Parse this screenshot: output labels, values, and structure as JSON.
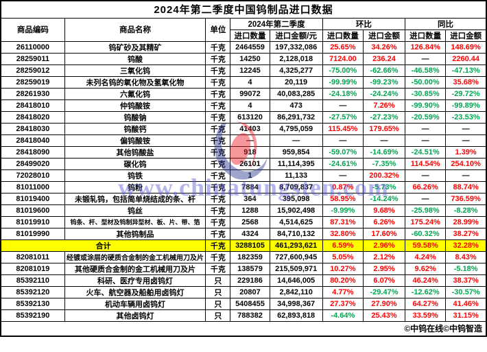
{
  "title": "2024年第二季度中国钨制品进口数据",
  "columns": {
    "code": "商品编码",
    "name": "商品名称",
    "unit": "单位",
    "q2_group": "2024年第二季度",
    "qoq_group": "环比",
    "yoy_group": "同比",
    "qty": "进口数量",
    "amount_yuan": "进口金额/元",
    "amount": "进口金额"
  },
  "colors": {
    "increase": "#FF0000",
    "decrease": "#00A650",
    "total_row_bg": "#FFFF00"
  },
  "rows": [
    {
      "code": "26110000",
      "name": "钨矿砂及其精矿",
      "unit": "千克",
      "qty": "2464559",
      "amount": "197,332,086",
      "qoq_qty": {
        "v": "25.65%",
        "c": "up"
      },
      "qoq_amt": {
        "v": "34.26%",
        "c": "up"
      },
      "yoy_qty": {
        "v": "126.84%",
        "c": "up"
      },
      "yoy_amt": {
        "v": "148.69%",
        "c": "up"
      }
    },
    {
      "code": "28259011",
      "name": "钨酸",
      "unit": "千克",
      "qty": "14250",
      "amount": "2,128,018",
      "qoq_qty": {
        "v": "7124.00",
        "c": "up"
      },
      "qoq_amt": {
        "v": "236.24",
        "c": "up"
      },
      "yoy_qty": {
        "v": "—",
        "c": "dash"
      },
      "yoy_amt": {
        "v": "2260.44",
        "c": "up"
      }
    },
    {
      "code": "28259012",
      "name": "三氧化钨",
      "unit": "千克",
      "qty": "12245",
      "amount": "4,325,277",
      "qoq_qty": {
        "v": "-75.00%",
        "c": "down"
      },
      "qoq_amt": {
        "v": "-62.66%",
        "c": "down"
      },
      "yoy_qty": {
        "v": "-46.58%",
        "c": "down"
      },
      "yoy_amt": {
        "v": "-47.13%",
        "c": "down"
      }
    },
    {
      "code": "28259019",
      "name": "未列名钨的氧化物及氢氧化物",
      "unit": "千克",
      "qty": "4",
      "amount": "20,119",
      "qoq_qty": {
        "v": "-99.99%",
        "c": "down"
      },
      "qoq_amt": {
        "v": "-99.23%",
        "c": "down"
      },
      "yoy_qty": {
        "v": "-50.00%",
        "c": "down"
      },
      "yoy_amt": {
        "v": "35.68%",
        "c": "up"
      }
    },
    {
      "code": "28261930",
      "name": "六氟化钨",
      "unit": "千克",
      "qty": "99072",
      "amount": "40,083,285",
      "qoq_qty": {
        "v": "-24.18%",
        "c": "down"
      },
      "qoq_amt": {
        "v": "-24.24%",
        "c": "down"
      },
      "yoy_qty": {
        "v": "-30.85%",
        "c": "down"
      },
      "yoy_amt": {
        "v": "-29.72%",
        "c": "down"
      }
    },
    {
      "code": "28418010",
      "name": "仲钨酸铵",
      "unit": "千克",
      "qty": "4",
      "amount": "473",
      "qoq_qty": {
        "v": "—",
        "c": "dash"
      },
      "qoq_amt": {
        "v": "7.26%",
        "c": "up"
      },
      "yoy_qty": {
        "v": "-99.90%",
        "c": "down"
      },
      "yoy_amt": {
        "v": "-99.89%",
        "c": "down"
      }
    },
    {
      "code": "28418020",
      "name": "钨酸钠",
      "unit": "千克",
      "qty": "613120",
      "amount": "86,291,732",
      "qoq_qty": {
        "v": "-27.57%",
        "c": "down"
      },
      "qoq_amt": {
        "v": "-27.23%",
        "c": "down"
      },
      "yoy_qty": {
        "v": "-20.59%",
        "c": "down"
      },
      "yoy_amt": {
        "v": "-23.53%",
        "c": "down"
      }
    },
    {
      "code": "28418030",
      "name": "钨酸钙",
      "unit": "千克",
      "qty": "41403",
      "amount": "4,795,059",
      "qoq_qty": {
        "v": "115.45%",
        "c": "up"
      },
      "qoq_amt": {
        "v": "179.65%",
        "c": "up"
      },
      "yoy_qty": {
        "v": "—",
        "c": "dash"
      },
      "yoy_amt": {
        "v": "—",
        "c": "dash"
      }
    },
    {
      "code": "28418040",
      "name": "偏钨酸铵",
      "unit": "千克",
      "qty": "—",
      "amount": "—",
      "qoq_qty": {
        "v": "—",
        "c": "dash"
      },
      "qoq_amt": {
        "v": "—",
        "c": "dash"
      },
      "yoy_qty": {
        "v": "—",
        "c": "dash"
      },
      "yoy_amt": {
        "v": "—",
        "c": "dash"
      }
    },
    {
      "code": "28418090",
      "name": "其他钨酸盐",
      "unit": "千克",
      "qty": "918",
      "amount": "959,854",
      "qoq_qty": {
        "v": "-59.07%",
        "c": "down"
      },
      "qoq_amt": {
        "v": "-14.69%",
        "c": "down"
      },
      "yoy_qty": {
        "v": "-24.51%",
        "c": "down"
      },
      "yoy_amt": {
        "v": "1.39%",
        "c": "up"
      }
    },
    {
      "code": "28499020",
      "name": "碳化钨",
      "unit": "千克",
      "qty": "26101",
      "amount": "11,114,395",
      "qoq_qty": {
        "v": "-24.61%",
        "c": "down"
      },
      "qoq_amt": {
        "v": "-7.35%",
        "c": "down"
      },
      "yoy_qty": {
        "v": "114.54%",
        "c": "up"
      },
      "yoy_amt": {
        "v": "254.10%",
        "c": "up"
      }
    },
    {
      "code": "72028010",
      "name": "钨铁",
      "unit": "千克",
      "qty": "1",
      "amount": "11,133",
      "qoq_qty": {
        "v": "—",
        "c": "dash"
      },
      "qoq_amt": {
        "v": "200.32%",
        "c": "up"
      },
      "yoy_qty": {
        "v": "—",
        "c": "dash"
      },
      "yoy_amt": {
        "v": "—",
        "c": "dash"
      }
    },
    {
      "code": "81011000",
      "name": "钨粉",
      "unit": "千克",
      "qty": "7884",
      "amount": "8,709,837",
      "qoq_qty": {
        "v": "0.87%",
        "c": "up"
      },
      "qoq_amt": {
        "v": "-5.73%",
        "c": "down"
      },
      "yoy_qty": {
        "v": "66.26%",
        "c": "up"
      },
      "yoy_amt": {
        "v": "88.74%",
        "c": "up"
      }
    },
    {
      "code": "81019400",
      "name": "未锻轧钨，包括简单烧结成的条、杆",
      "unit": "千克",
      "qty": "364",
      "amount": "395,098",
      "qoq_qty": {
        "v": "58.95%",
        "c": "up"
      },
      "qoq_amt": {
        "v": "-14.24%",
        "c": "down"
      },
      "yoy_qty": {
        "v": "—",
        "c": "dash"
      },
      "yoy_amt": {
        "v": "736.59%",
        "c": "up"
      }
    },
    {
      "code": "81019600",
      "name": "钨丝",
      "unit": "千克",
      "qty": "1288",
      "amount": "15,902,498",
      "qoq_qty": {
        "v": "-9.99%",
        "c": "down"
      },
      "qoq_amt": {
        "v": "9.68%",
        "c": "up"
      },
      "yoy_qty": {
        "v": "-25.98%",
        "c": "down"
      },
      "yoy_amt": {
        "v": "-8.28%",
        "c": "down"
      }
    },
    {
      "code": "81019910",
      "name": "钨条、杆、型材及钨制异型材、板、片、带、箔",
      "unit": "千克",
      "qty": "2568",
      "amount": "4,514,625",
      "qoq_qty": {
        "v": "87.31%",
        "c": "up"
      },
      "qoq_amt": {
        "v": "6.26%",
        "c": "up"
      },
      "yoy_qty": {
        "v": "175.24%",
        "c": "up"
      },
      "yoy_amt": {
        "v": "28.99%",
        "c": "up"
      }
    },
    {
      "code": "81019990",
      "name": "其他钨制品",
      "unit": "千克",
      "qty": "4324",
      "amount": "84,710,132",
      "qoq_qty": {
        "v": "32.80%",
        "c": "up"
      },
      "qoq_amt": {
        "v": "17.60%",
        "c": "up"
      },
      "yoy_qty": {
        "v": "-60.32%",
        "c": "down"
      },
      "yoy_amt": {
        "v": "38.27%",
        "c": "up"
      }
    },
    {
      "total": true,
      "name": "合计",
      "unit": "千克",
      "qty": "3288105",
      "amount": "461,293,621",
      "qoq_qty": {
        "v": "6.59%",
        "c": "up"
      },
      "qoq_amt": {
        "v": "2.96%",
        "c": "up"
      },
      "yoy_qty": {
        "v": "59.58%",
        "c": "up"
      },
      "yoy_amt": {
        "v": "32.28%",
        "c": "up"
      }
    },
    {
      "code": "82081011",
      "name": "经镀或涂层的硬质合金制的金工机械用刀及片",
      "unit": "千克",
      "qty": "182359",
      "amount": "727,600,945",
      "qoq_qty": {
        "v": "5.05%",
        "c": "up"
      },
      "qoq_amt": {
        "v": "2.12%",
        "c": "up"
      },
      "yoy_qty": {
        "v": "4.24%",
        "c": "up"
      },
      "yoy_amt": {
        "v": "8.43%",
        "c": "up"
      }
    },
    {
      "code": "82081019",
      "name": "其他硬质合金制的金工机械用刀及片",
      "unit": "千克",
      "qty": "138579",
      "amount": "215,509,971",
      "qoq_qty": {
        "v": "10.27%",
        "c": "up"
      },
      "qoq_amt": {
        "v": "2.95%",
        "c": "up"
      },
      "yoy_qty": {
        "v": "9.62%",
        "c": "up"
      },
      "yoy_amt": {
        "v": "-5.18%",
        "c": "down"
      }
    },
    {
      "code": "85392110",
      "name": "科研、医疗专用卤钨灯",
      "unit": "只",
      "qty": "229186",
      "amount": "14,646,005",
      "qoq_qty": {
        "v": "80.20%",
        "c": "up"
      },
      "qoq_amt": {
        "v": "6.07%",
        "c": "up"
      },
      "yoy_qty": {
        "v": "46.24%",
        "c": "up"
      },
      "yoy_amt": {
        "v": "38.37%",
        "c": "up"
      }
    },
    {
      "code": "85392120",
      "name": "火车、航空器及船舶用卤钨灯",
      "unit": "只",
      "qty": "20807",
      "amount": "2,842,110",
      "qoq_qty": {
        "v": "4.77%",
        "c": "up"
      },
      "qoq_amt": {
        "v": "-29.47%",
        "c": "down"
      },
      "yoy_qty": {
        "v": "-12.62%",
        "c": "down"
      },
      "yoy_amt": {
        "v": "-30.57%",
        "c": "down"
      }
    },
    {
      "code": "85392130",
      "name": "机动车辆用卤钨灯",
      "unit": "只",
      "qty": "5408455",
      "amount": "34,998,367",
      "qoq_qty": {
        "v": "27.37%",
        "c": "up"
      },
      "qoq_amt": {
        "v": "27.90%",
        "c": "up"
      },
      "yoy_qty": {
        "v": "64.27%",
        "c": "up"
      },
      "yoy_amt": {
        "v": "41.46%",
        "c": "up"
      }
    },
    {
      "code": "85392190",
      "name": "其他卤钨灯",
      "unit": "只",
      "qty": "788382",
      "amount": "62,893,818",
      "qoq_qty": {
        "v": "-4.64%",
        "c": "down"
      },
      "qoq_amt": {
        "v": "25.43%",
        "c": "up"
      },
      "yoy_qty": {
        "v": "33.59%",
        "c": "up"
      },
      "yoy_amt": {
        "v": "31.15%",
        "c": "up"
      }
    }
  ],
  "footer": {
    "copyright": "©中钨在线©中钨智造"
  },
  "watermark": {
    "text": "www.chinatungsten.com"
  }
}
